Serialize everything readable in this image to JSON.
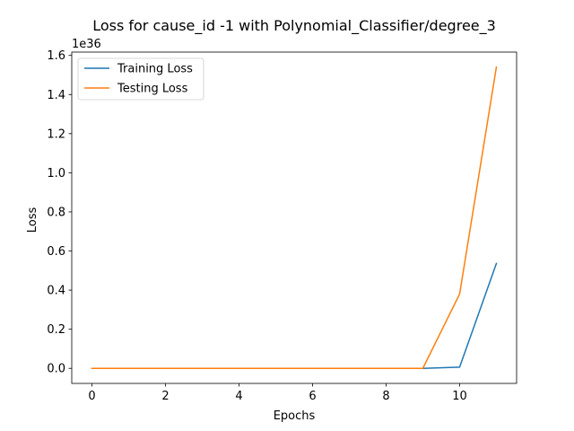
{
  "chart_data": {
    "type": "line",
    "title": "Loss for cause_id -1 with Polynomial_Classifier/degree_3",
    "xlabel": "Epochs",
    "ylabel": "Loss",
    "offset_label": "1e36",
    "x": [
      0,
      1,
      2,
      3,
      4,
      5,
      6,
      7,
      8,
      9,
      10,
      11
    ],
    "xlim": [
      -0.55,
      11.55
    ],
    "ylim": [
      -0.077,
      1.617
    ],
    "xticks": [
      0,
      2,
      4,
      6,
      8,
      10
    ],
    "xtick_labels": [
      "0",
      "2",
      "4",
      "6",
      "8",
      "10"
    ],
    "yticks": [
      0.0,
      0.2,
      0.4,
      0.6,
      0.8,
      1.0,
      1.2,
      1.4,
      1.6
    ],
    "ytick_labels": [
      "0.0",
      "0.2",
      "0.4",
      "0.6",
      "0.8",
      "1.0",
      "1.2",
      "1.4",
      "1.6"
    ],
    "grid": false,
    "legend_position": "top-left",
    "series": [
      {
        "name": "Training Loss",
        "color": "#1f77b4",
        "values": [
          0,
          0,
          0,
          0,
          0,
          0,
          0,
          0,
          0,
          0,
          0.006,
          0.536
        ]
      },
      {
        "name": "Testing Loss",
        "color": "#ff7f0e",
        "values": [
          0,
          0,
          0,
          0,
          0,
          0,
          0,
          0,
          0,
          0,
          0.38,
          1.54
        ]
      }
    ]
  }
}
